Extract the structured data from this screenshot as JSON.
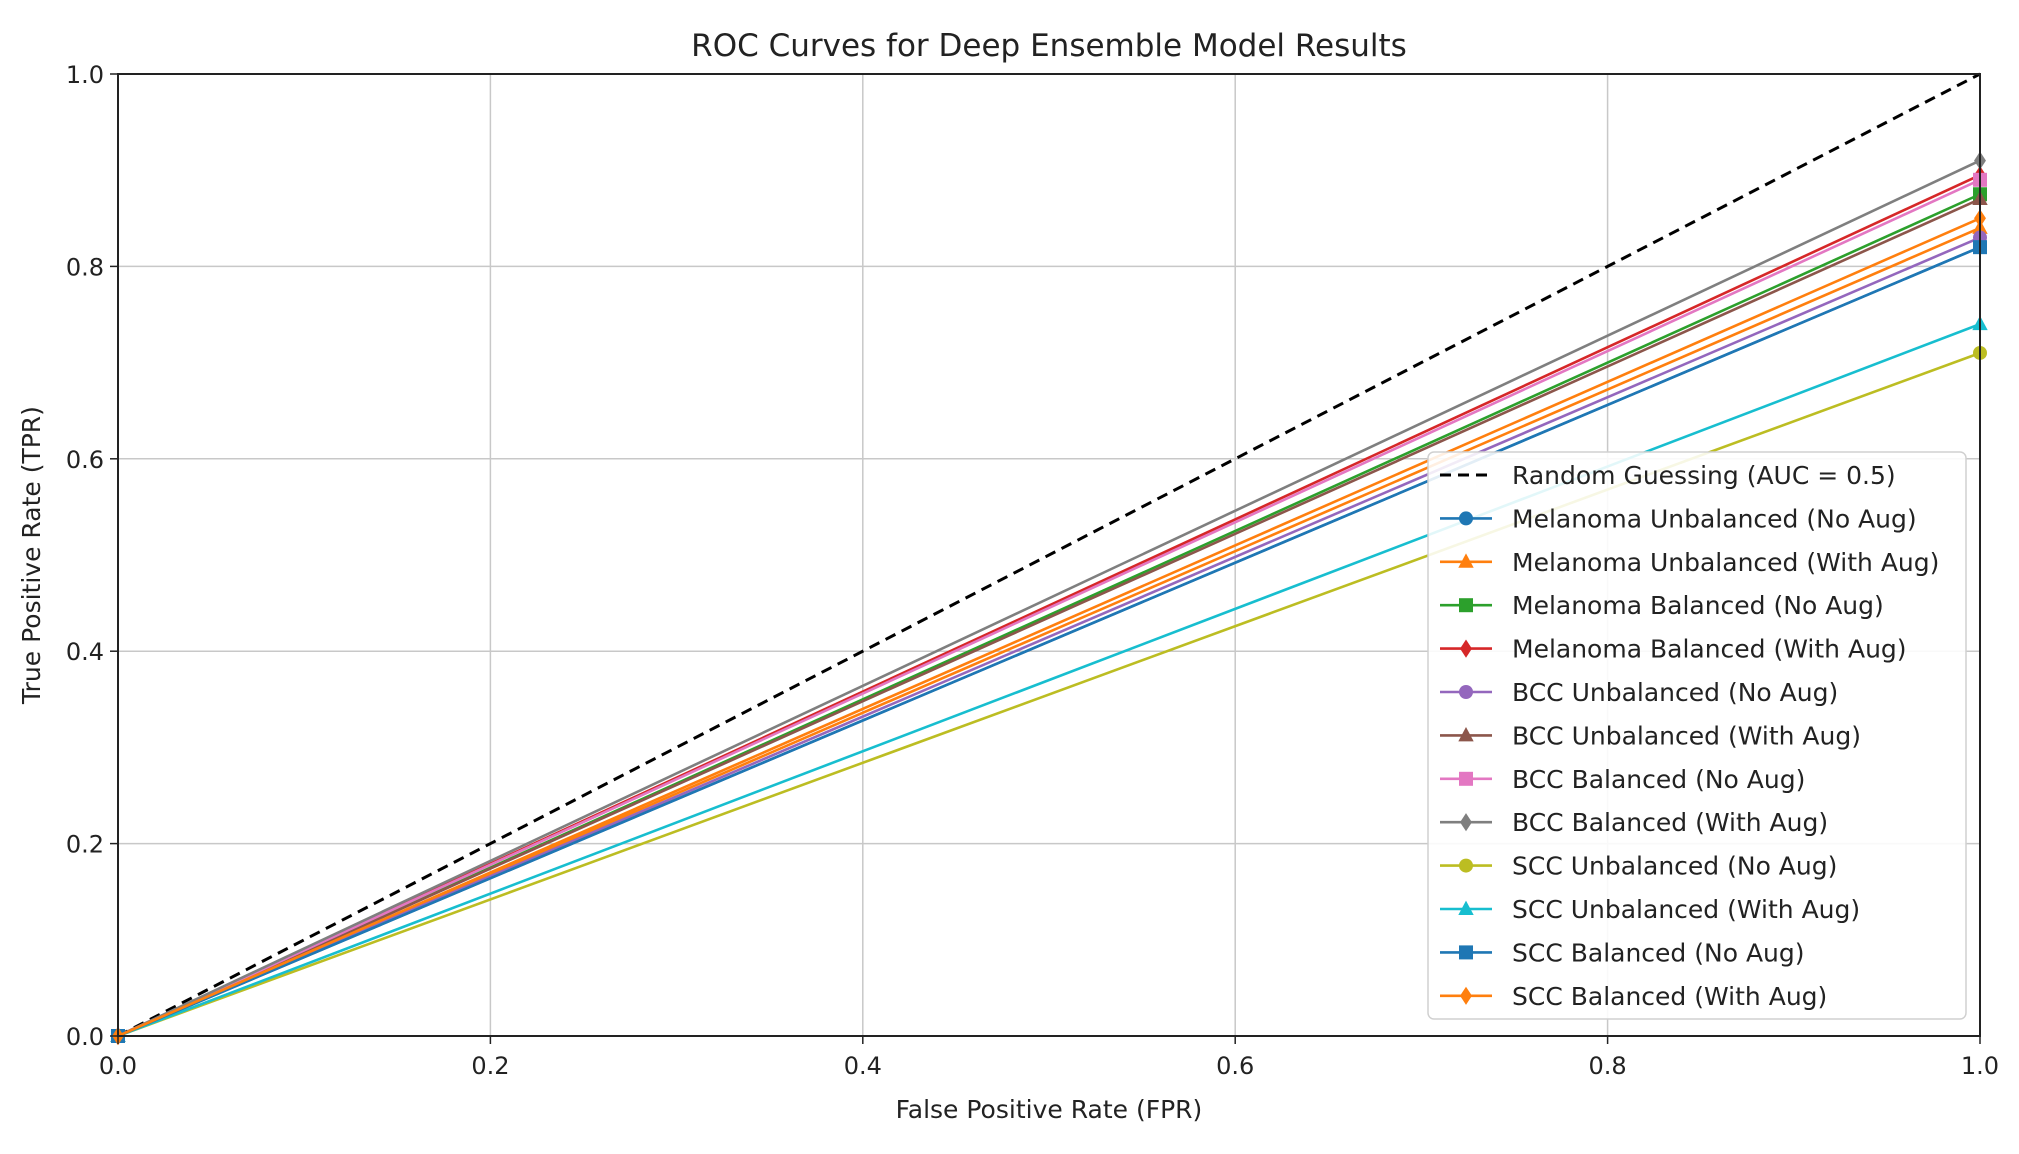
{
  "chart_data": {
    "type": "line",
    "title": "ROC Curves for Deep Ensemble Model Results",
    "xlabel": "False Positive Rate (FPR)",
    "ylabel": "True Positive Rate (TPR)",
    "xlim": [
      0.0,
      1.0
    ],
    "ylim": [
      0.0,
      1.0
    ],
    "xticks": [
      "0.0",
      "0.2",
      "0.4",
      "0.6",
      "0.8",
      "1.0"
    ],
    "yticks": [
      "0.0",
      "0.2",
      "0.4",
      "0.6",
      "0.8",
      "1.0"
    ],
    "grid": true,
    "legend_position": "lower-right",
    "series": [
      {
        "name": "Random Guessing (AUC = 0.5)",
        "x": [
          0,
          1
        ],
        "y": [
          0,
          1.0
        ],
        "color": "#000000",
        "dash": true,
        "marker": "none"
      },
      {
        "name": "Melanoma Unbalanced (No Aug)",
        "x": [
          0,
          1
        ],
        "y": [
          0,
          0.82
        ],
        "color": "#1f77b4",
        "dash": false,
        "marker": "circle"
      },
      {
        "name": "Melanoma Unbalanced (With Aug)",
        "x": [
          0,
          1
        ],
        "y": [
          0,
          0.84
        ],
        "color": "#ff7f0e",
        "dash": false,
        "marker": "triangle"
      },
      {
        "name": "Melanoma Balanced (No Aug)",
        "x": [
          0,
          1
        ],
        "y": [
          0,
          0.875
        ],
        "color": "#2ca02c",
        "dash": false,
        "marker": "square"
      },
      {
        "name": "Melanoma Balanced (With Aug)",
        "x": [
          0,
          1
        ],
        "y": [
          0,
          0.895
        ],
        "color": "#d62728",
        "dash": false,
        "marker": "diamond"
      },
      {
        "name": "BCC Unbalanced (No Aug)",
        "x": [
          0,
          1
        ],
        "y": [
          0,
          0.83
        ],
        "color": "#9467bd",
        "dash": false,
        "marker": "circle"
      },
      {
        "name": "BCC Unbalanced (With Aug)",
        "x": [
          0,
          1
        ],
        "y": [
          0,
          0.87
        ],
        "color": "#8c564b",
        "dash": false,
        "marker": "triangle"
      },
      {
        "name": "BCC Balanced (No Aug)",
        "x": [
          0,
          1
        ],
        "y": [
          0,
          0.89
        ],
        "color": "#e377c2",
        "dash": false,
        "marker": "square"
      },
      {
        "name": "BCC Balanced (With Aug)",
        "x": [
          0,
          1
        ],
        "y": [
          0,
          0.91
        ],
        "color": "#7f7f7f",
        "dash": false,
        "marker": "diamond"
      },
      {
        "name": "SCC Unbalanced (No Aug)",
        "x": [
          0,
          1
        ],
        "y": [
          0,
          0.71
        ],
        "color": "#bcbd22",
        "dash": false,
        "marker": "circle"
      },
      {
        "name": "SCC Unbalanced (With Aug)",
        "x": [
          0,
          1
        ],
        "y": [
          0,
          0.74
        ],
        "color": "#17becf",
        "dash": false,
        "marker": "triangle"
      },
      {
        "name": "SCC Balanced (No Aug)",
        "x": [
          0,
          1
        ],
        "y": [
          0,
          0.82
        ],
        "color": "#1f77b4",
        "dash": false,
        "marker": "square"
      },
      {
        "name": "SCC Balanced (With Aug)",
        "x": [
          0,
          1
        ],
        "y": [
          0,
          0.85
        ],
        "color": "#ff7f0e",
        "dash": false,
        "marker": "diamond"
      }
    ]
  }
}
